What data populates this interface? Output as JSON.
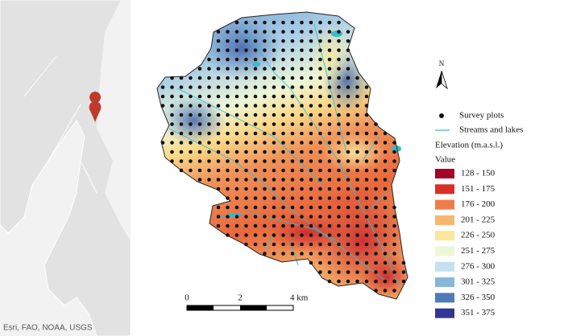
{
  "inset": {
    "attribution": "Esri, FAO, NOAA, USGS"
  },
  "north_arrow": {
    "label": "N"
  },
  "legend": {
    "survey_plots": "Survey plots",
    "streams": "Streams and lakes",
    "elevation_title": "Elevation (m.a.s.l.)",
    "value_header": "Value",
    "classes": [
      {
        "label": "128 - 150",
        "color": "#a50026"
      },
      {
        "label": "151 - 175",
        "color": "#d73027"
      },
      {
        "label": "176 - 200",
        "color": "#f07c4a"
      },
      {
        "label": "201 - 225",
        "color": "#f9b66f"
      },
      {
        "label": "226 - 250",
        "color": "#fbe79d"
      },
      {
        "label": "251 - 275",
        "color": "#eef6d8"
      },
      {
        "label": "276 - 300",
        "color": "#c3e2ee"
      },
      {
        "label": "301 - 325",
        "color": "#86b7d8"
      },
      {
        "label": "326 - 350",
        "color": "#4f7cb9"
      },
      {
        "label": "351 - 375",
        "color": "#313695"
      }
    ]
  },
  "scale_bar": {
    "labels": [
      "0",
      "2",
      "4 km"
    ]
  }
}
